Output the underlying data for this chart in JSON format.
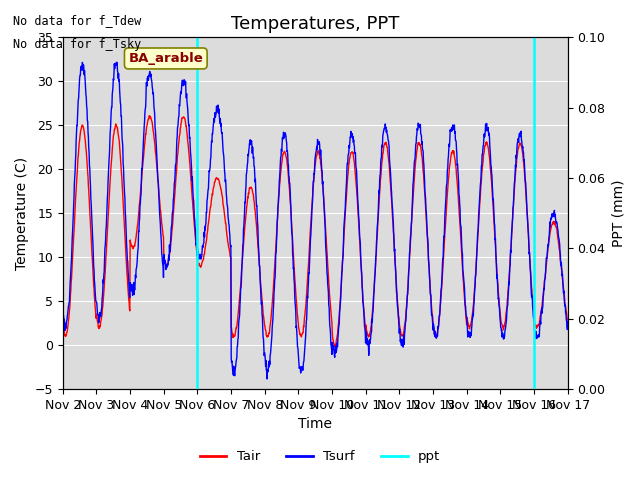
{
  "title": "Temperatures, PPT",
  "xlabel": "Time",
  "ylabel_left": "Temperature (C)",
  "ylabel_right": "PPT (mm)",
  "annotation_lines": [
    "No data for f_Tdew",
    "No data for f_Tsky"
  ],
  "site_label": "BA_arable",
  "ylim_left": [
    -5,
    35
  ],
  "ylim_right": [
    0.0,
    0.1
  ],
  "yticks_left": [
    -5,
    0,
    5,
    10,
    15,
    20,
    25,
    30,
    35
  ],
  "yticks_right": [
    0.0,
    0.02,
    0.04,
    0.06,
    0.08,
    0.1
  ],
  "bg_color": "#dcdcdc",
  "vline_color": "cyan",
  "vline_x": [
    4.0,
    14.0
  ],
  "Tair_color": "red",
  "Tsurf_color": "blue",
  "ppt_color": "cyan",
  "legend_labels": [
    "Tair",
    "Tsurf",
    "ppt"
  ],
  "title_fontsize": 13,
  "label_fontsize": 10,
  "tick_fontsize": 9,
  "x_tick_positions": [
    0,
    1,
    2,
    3,
    4,
    5,
    6,
    7,
    8,
    9,
    10,
    11,
    12,
    13,
    14,
    15
  ],
  "x_tick_labels": [
    "Nov 2",
    "Nov 3",
    "Nov 4",
    "Nov 5",
    "Nov 6",
    "Nov 7",
    "Nov 8",
    "Nov 9",
    "Nov 10",
    "Nov 11",
    "Nov 12",
    "Nov 13",
    "Nov 14",
    "Nov 15",
    "Nov 16",
    "Nov 17"
  ],
  "xlim": [
    0,
    15
  ]
}
